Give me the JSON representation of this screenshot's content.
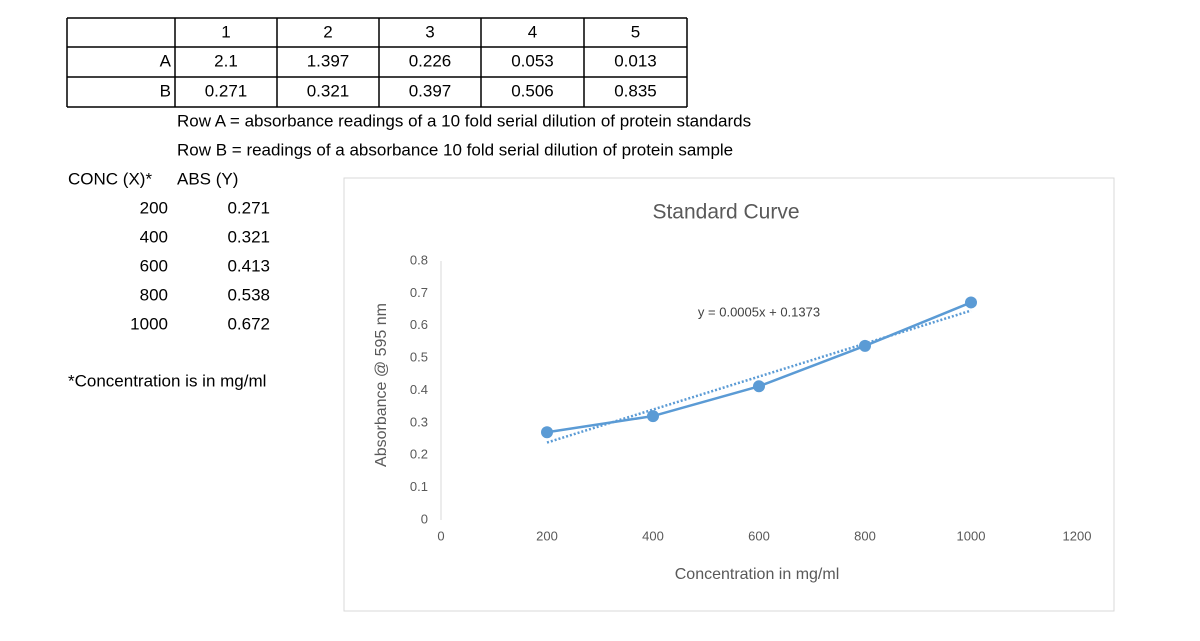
{
  "table": {
    "header": [
      "1",
      "2",
      "3",
      "4",
      "5"
    ],
    "rows": [
      {
        "label": "A",
        "cells": [
          "2.1",
          "1.397",
          "0.226",
          "0.053",
          "0.013"
        ]
      },
      {
        "label": "B",
        "cells": [
          "0.271",
          "0.321",
          "0.397",
          "0.506",
          "0.835"
        ]
      }
    ]
  },
  "notes": [
    "Row A = absorbance readings of a 10 fold serial dilution of protein standards",
    "Row B = readings of a absorbance 10 fold serial dilution of protein sample"
  ],
  "conc_table": {
    "header": [
      "CONC (X)*",
      "ABS (Y)"
    ],
    "rows": [
      [
        "200",
        "0.271"
      ],
      [
        "400",
        "0.321"
      ],
      [
        "600",
        "0.413"
      ],
      [
        "800",
        "0.538"
      ],
      [
        "1000",
        "0.672"
      ]
    ]
  },
  "footnote": "*Concentration is in mg/ml",
  "chart_data": {
    "type": "scatter",
    "title": "Standard Curve",
    "x_label": "Concentration in mg/ml",
    "y_label": "Absorbance @ 595 nm",
    "x": [
      200,
      400,
      600,
      800,
      1000
    ],
    "values": [
      0.271,
      0.321,
      0.413,
      0.538,
      0.672
    ],
    "color": "#5b9bd5",
    "connect_points": true,
    "trendline": "linear",
    "annotation": "y = 0.0005x + 0.1373",
    "xlim": [
      0,
      1200
    ],
    "xticks": [
      0,
      200,
      400,
      600,
      800,
      1000,
      1200
    ],
    "ylim": [
      0,
      0.8
    ],
    "yticks": [
      0,
      0.1,
      0.2,
      0.3,
      0.4,
      0.5,
      0.6,
      0.7,
      0.8
    ],
    "grid": false
  }
}
